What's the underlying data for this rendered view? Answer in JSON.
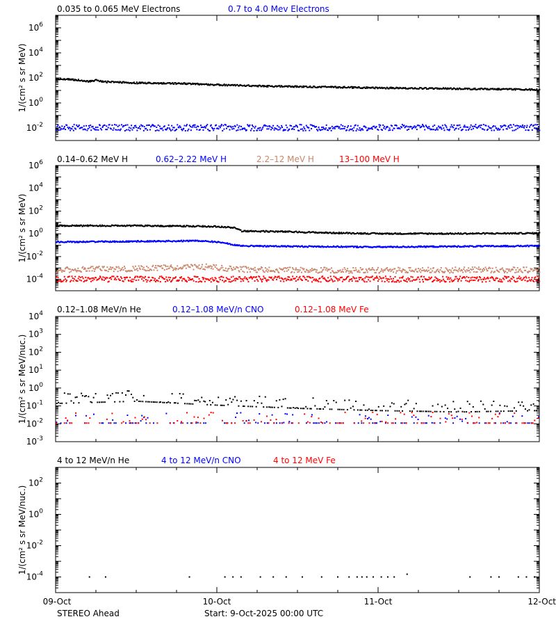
{
  "colors": {
    "black": "#000000",
    "blue": "#0000ff",
    "tan": "#c8866a",
    "red": "#ff0000"
  },
  "footer": {
    "spacecraft": "STEREO Ahead",
    "start_text": "Start:  9-Oct-2025 00:00 UTC"
  },
  "chart_data": [
    {
      "type": "scatter",
      "ylabel": "1/(cm² s sr MeV)",
      "yscale": "log",
      "ylim": [
        0.001,
        10000000
      ],
      "yticks": [
        {
          "value": 0.01,
          "base": "10",
          "exp": "-2"
        },
        {
          "value": 1,
          "base": "10",
          "exp": "0"
        },
        {
          "value": 100,
          "base": "10",
          "exp": "2"
        },
        {
          "value": 10000,
          "base": "10",
          "exp": "4"
        },
        {
          "value": 1000000,
          "base": "10",
          "exp": "6"
        }
      ],
      "legend": [
        {
          "label": "0.035 to 0.065 MeV Electrons",
          "color": "#000000"
        },
        {
          "label": "0.7 to 4.0 Mev Electrons",
          "color": "#0000ff"
        }
      ],
      "series": [
        {
          "name": "0.035 to 0.065 MeV Electrons",
          "color": "#000000",
          "style": "dense",
          "x": [
            0,
            0.1,
            0.2,
            0.25,
            0.3,
            0.5,
            0.8,
            1.0,
            1.3,
            1.6,
            2.0,
            2.4,
            2.8,
            3.0
          ],
          "y": [
            90,
            85,
            60,
            75,
            55,
            45,
            40,
            32,
            25,
            22,
            18,
            16,
            14,
            13
          ]
        },
        {
          "name": "0.7 to 4.0 Mev Electrons",
          "color": "#0000ff",
          "style": "scatter",
          "x": [
            0,
            3
          ],
          "y": [
            0.012,
            0.012
          ]
        }
      ]
    },
    {
      "type": "scatter",
      "ylabel": "1/(cm² s sr MeV)",
      "yscale": "log",
      "ylim": [
        1e-05,
        1000000
      ],
      "yticks": [
        {
          "value": 0.0001,
          "base": "10",
          "exp": "-4"
        },
        {
          "value": 0.01,
          "base": "10",
          "exp": "-2"
        },
        {
          "value": 1,
          "base": "10",
          "exp": "0"
        },
        {
          "value": 100,
          "base": "10",
          "exp": "2"
        },
        {
          "value": 10000,
          "base": "10",
          "exp": "4"
        },
        {
          "value": 1000000,
          "base": "10",
          "exp": "6"
        }
      ],
      "legend": [
        {
          "label": "0.14–0.62 MeV H",
          "color": "#000000"
        },
        {
          "label": "0.62–2.22 MeV H",
          "color": "#0000ff"
        },
        {
          "label": "2.2–12 MeV H",
          "color": "#c8866a"
        },
        {
          "label": "13–100 MeV H",
          "color": "#ff0000"
        }
      ],
      "series": [
        {
          "name": "0.14–0.62 MeV H",
          "color": "#000000",
          "style": "dense",
          "x": [
            0,
            0.5,
            1.0,
            1.1,
            1.15,
            1.4,
            1.7,
            2.0,
            2.5,
            3.0
          ],
          "y": [
            6,
            6,
            5,
            4,
            2.0,
            1.8,
            1.4,
            1.2,
            1.2,
            1.3
          ]
        },
        {
          "name": "0.62–2.22 MeV H",
          "color": "#0000ff",
          "style": "dense",
          "x": [
            0,
            0.5,
            0.9,
            1.0,
            1.15,
            1.5,
            2.0,
            2.5,
            3.0
          ],
          "y": [
            0.22,
            0.25,
            0.28,
            0.22,
            0.1,
            0.09,
            0.08,
            0.09,
            0.1
          ]
        },
        {
          "name": "2.2–12 MeV H",
          "color": "#c8866a",
          "style": "scatter",
          "x": [
            0,
            0.5,
            0.9,
            1.2,
            2.0,
            3.0
          ],
          "y": [
            0.0008,
            0.001,
            0.0015,
            0.0008,
            0.0007,
            0.0008
          ]
        },
        {
          "name": "13–100 MeV H",
          "color": "#ff0000",
          "style": "scatter",
          "x": [
            0,
            3
          ],
          "y": [
            0.00012,
            0.00012
          ]
        }
      ]
    },
    {
      "type": "scatter",
      "ylabel": "1/(cm² s sr MeV/nuc.)",
      "yscale": "log",
      "ylim": [
        0.001,
        10000
      ],
      "yticks": [
        {
          "value": 0.001,
          "base": "10",
          "exp": "-3"
        },
        {
          "value": 0.01,
          "base": "10",
          "exp": "-2"
        },
        {
          "value": 0.1,
          "base": "10",
          "exp": "-1"
        },
        {
          "value": 1,
          "base": "10",
          "exp": "0"
        },
        {
          "value": 10,
          "base": "10",
          "exp": "1"
        },
        {
          "value": 100,
          "base": "10",
          "exp": "2"
        },
        {
          "value": 1000,
          "base": "10",
          "exp": "3"
        },
        {
          "value": 10000,
          "base": "10",
          "exp": "4"
        }
      ],
      "legend": [
        {
          "label": "0.12–1.08 MeV/n He",
          "color": "#000000"
        },
        {
          "label": "0.12–1.08 MeV/n CNO",
          "color": "#0000ff"
        },
        {
          "label": "0.12–1.08 MeV Fe",
          "color": "#ff0000"
        }
      ],
      "series": [
        {
          "name": "0.12–1.08 MeV/n He",
          "color": "#000000",
          "style": "sparse",
          "x": [
            0,
            0.5,
            1.0,
            1.5,
            2.0,
            2.5,
            3.0
          ],
          "y": [
            0.15,
            0.2,
            0.12,
            0.08,
            0.06,
            0.05,
            0.06
          ]
        },
        {
          "name": "0.12–1.08 MeV/n CNO",
          "color": "#0000ff",
          "style": "sparse",
          "x": [
            0,
            3
          ],
          "y": [
            0.012,
            0.012
          ]
        },
        {
          "name": "0.12–1.08 MeV Fe",
          "color": "#ff0000",
          "style": "sparse",
          "x": [
            0,
            3
          ],
          "y": [
            0.012,
            0.012
          ]
        }
      ]
    },
    {
      "type": "scatter",
      "ylabel": "1/(cm² s sr MeV/nuc.)",
      "yscale": "log",
      "ylim": [
        1e-05,
        1000
      ],
      "yticks": [
        {
          "value": 0.0001,
          "base": "10",
          "exp": "-4"
        },
        {
          "value": 0.01,
          "base": "10",
          "exp": "-2"
        },
        {
          "value": 1,
          "base": "10",
          "exp": "0"
        },
        {
          "value": 100,
          "base": "10",
          "exp": "2"
        }
      ],
      "legend": [
        {
          "label": "4 to 12 MeV/n He",
          "color": "#000000"
        },
        {
          "label": "4 to 12 MeV/n CNO",
          "color": "#0000ff"
        },
        {
          "label": "4 to 12 MeV Fe",
          "color": "#ff0000"
        }
      ],
      "series": [
        {
          "name": "4 to 12 MeV/n He",
          "color": "#000000",
          "style": "points",
          "x": [
            0.21,
            0.31,
            0.83,
            1.05,
            1.1,
            1.15,
            1.27,
            1.35,
            1.43,
            1.53,
            1.65,
            1.75,
            1.82,
            1.87,
            1.9,
            1.93,
            1.97,
            2.02,
            2.06,
            2.1,
            2.18,
            2.57,
            2.7,
            2.75,
            2.87,
            2.92,
            2.97
          ],
          "y": [
            0.0001,
            0.0001,
            0.0001,
            0.0001,
            0.0001,
            0.0001,
            0.0001,
            0.0001,
            0.0001,
            0.0001,
            0.0001,
            0.0001,
            0.0001,
            0.0001,
            0.0001,
            0.0001,
            0.0001,
            0.0001,
            0.0001,
            0.0001,
            0.00015,
            0.0001,
            0.0001,
            0.0001,
            0.0001,
            0.0001,
            0.0001
          ]
        }
      ]
    }
  ],
  "x_axis": {
    "range_days": [
      0,
      3
    ],
    "ticks": [
      {
        "value": 0,
        "label": "09-Oct"
      },
      {
        "value": 1,
        "label": "10-Oct"
      },
      {
        "value": 2,
        "label": "11-Oct"
      },
      {
        "value": 3,
        "label": "12-Oct"
      }
    ]
  }
}
